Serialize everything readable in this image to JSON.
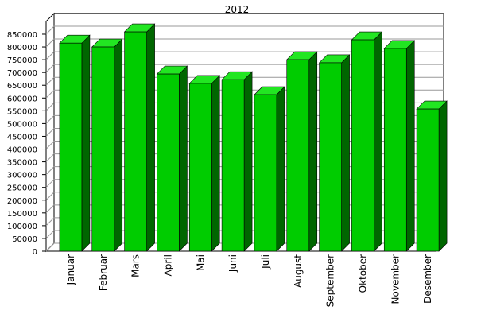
{
  "chart_data": {
    "type": "bar3d",
    "title": "2012",
    "categories": [
      "Januar",
      "Februar",
      "Mars",
      "April",
      "Mai",
      "Juni",
      "Juli",
      "August",
      "September",
      "Oktober",
      "November",
      "Desember"
    ],
    "values": [
      815000,
      800000,
      859000,
      694000,
      657000,
      672000,
      613000,
      750000,
      738000,
      828000,
      794000,
      557000
    ],
    "color": "#00cc00",
    "ylim": [
      0,
      900000
    ],
    "yticks": [
      0,
      50000,
      100000,
      150000,
      200000,
      250000,
      300000,
      350000,
      400000,
      450000,
      500000,
      550000,
      600000,
      650000,
      700000,
      750000,
      800000,
      850000
    ],
    "grid": true
  }
}
